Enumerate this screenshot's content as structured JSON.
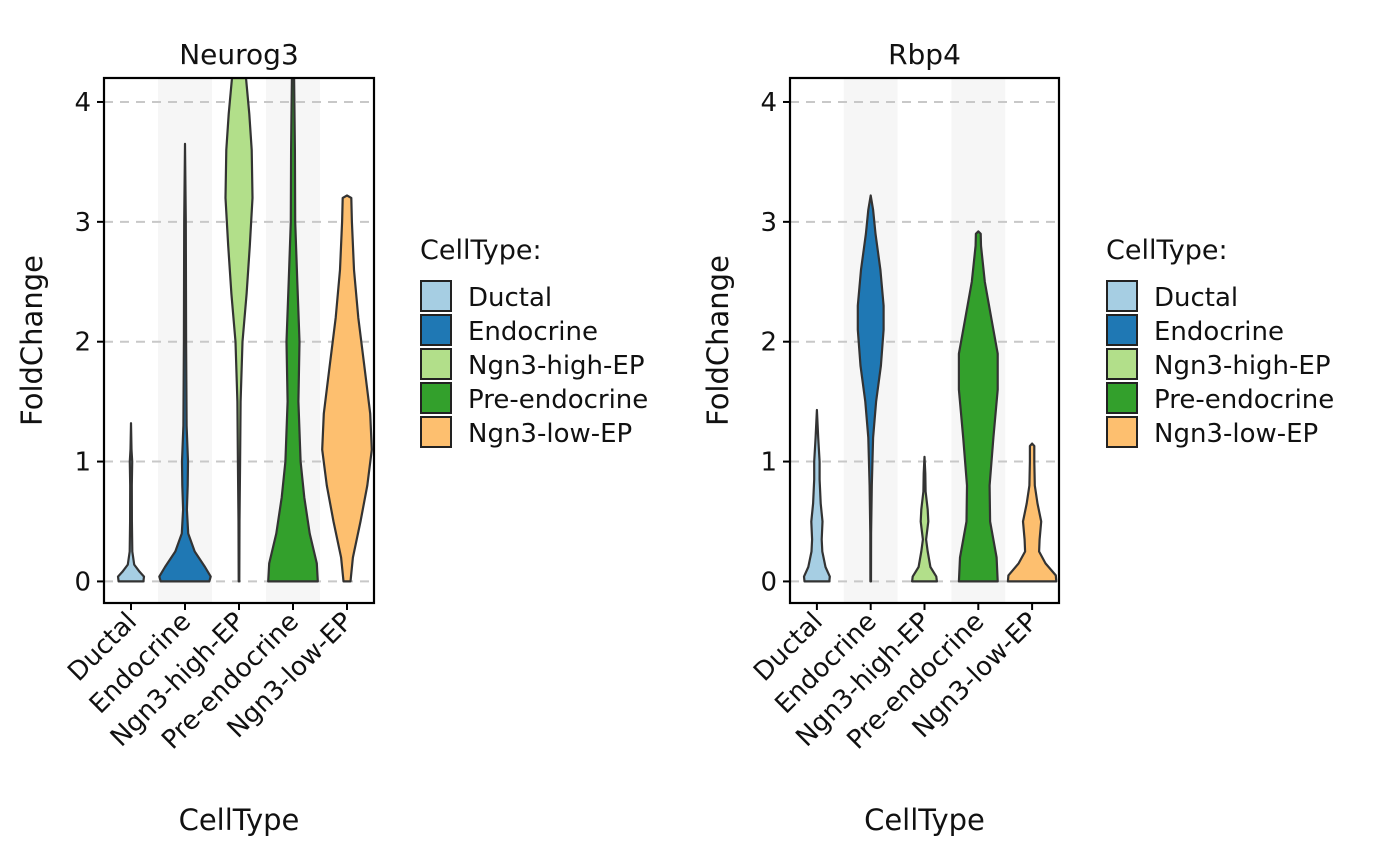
{
  "chart_data": [
    {
      "type": "violin",
      "title": "Neurog3",
      "xlabel": "CellType",
      "ylabel": "FoldChange",
      "ylim": [
        -0.18,
        4.2
      ],
      "yticks": [
        0,
        1,
        2,
        3,
        4
      ],
      "grid": "horizontal dashed",
      "categories": [
        "Ductal",
        "Endocrine",
        "Ngn3-high-EP",
        "Pre-endocrine",
        "Ngn3-low-EP"
      ],
      "legend": {
        "title": "CellType:",
        "position": "right",
        "entries": [
          "Ductal",
          "Endocrine",
          "Ngn3-high-EP",
          "Pre-endocrine",
          "Ngn3-low-EP"
        ]
      },
      "series": [
        {
          "category": "Ductal",
          "color": "#A6CEE3",
          "min": 0,
          "max": 1.32,
          "profile": [
            [
              0,
              0.46
            ],
            [
              0.04,
              0.48
            ],
            [
              0.08,
              0.32
            ],
            [
              0.14,
              0.12
            ],
            [
              0.25,
              0.05
            ],
            [
              0.5,
              0.035
            ],
            [
              0.8,
              0.03
            ],
            [
              1.0,
              0.045
            ],
            [
              1.1,
              0.02
            ],
            [
              1.32,
              0.0
            ]
          ]
        },
        {
          "category": "Endocrine",
          "color": "#1F78B4",
          "min": 0,
          "max": 3.65,
          "profile": [
            [
              0,
              0.9
            ],
            [
              0.04,
              0.95
            ],
            [
              0.12,
              0.74
            ],
            [
              0.25,
              0.36
            ],
            [
              0.4,
              0.12
            ],
            [
              0.6,
              0.07
            ],
            [
              0.8,
              0.1
            ],
            [
              1.0,
              0.11
            ],
            [
              1.3,
              0.06
            ],
            [
              2.0,
              0.04
            ],
            [
              3.0,
              0.03
            ],
            [
              3.65,
              0.0
            ]
          ]
        },
        {
          "category": "Ngn3-high-EP",
          "color": "#B2DF8A",
          "min": 0,
          "max": 4.2,
          "profile": [
            [
              0,
              0.012
            ],
            [
              0.5,
              0.02
            ],
            [
              1.0,
              0.04
            ],
            [
              1.5,
              0.06
            ],
            [
              2.0,
              0.13
            ],
            [
              2.4,
              0.28
            ],
            [
              2.8,
              0.4
            ],
            [
              3.2,
              0.5
            ],
            [
              3.6,
              0.47
            ],
            [
              3.9,
              0.38
            ],
            [
              4.2,
              0.26
            ]
          ]
        },
        {
          "category": "Pre-endocrine",
          "color": "#33A02C",
          "min": 0,
          "max": 4.2,
          "profile": [
            [
              0,
              0.92
            ],
            [
              0.15,
              0.88
            ],
            [
              0.4,
              0.62
            ],
            [
              0.7,
              0.42
            ],
            [
              1.0,
              0.28
            ],
            [
              1.5,
              0.2
            ],
            [
              2.0,
              0.24
            ],
            [
              2.5,
              0.16
            ],
            [
              3.0,
              0.08
            ],
            [
              3.6,
              0.07
            ],
            [
              4.2,
              0.04
            ]
          ]
        },
        {
          "category": "Ngn3-low-EP",
          "color": "#FDBF6F",
          "min": 0,
          "max": 3.22,
          "profile": [
            [
              0,
              0.13
            ],
            [
              0.2,
              0.22
            ],
            [
              0.5,
              0.5
            ],
            [
              0.8,
              0.75
            ],
            [
              1.1,
              0.92
            ],
            [
              1.4,
              0.86
            ],
            [
              1.8,
              0.64
            ],
            [
              2.2,
              0.42
            ],
            [
              2.6,
              0.26
            ],
            [
              3.0,
              0.18
            ],
            [
              3.2,
              0.16
            ],
            [
              3.22,
              0.0
            ]
          ]
        }
      ]
    },
    {
      "type": "violin",
      "title": "Rbp4",
      "xlabel": "CellType",
      "ylabel": "FoldChange",
      "ylim": [
        -0.18,
        4.2
      ],
      "yticks": [
        0,
        1,
        2,
        3,
        4
      ],
      "grid": "horizontal dashed",
      "categories": [
        "Ductal",
        "Endocrine",
        "Ngn3-high-EP",
        "Pre-endocrine",
        "Ngn3-low-EP"
      ],
      "legend": {
        "title": "CellType:",
        "position": "right",
        "entries": [
          "Ductal",
          "Endocrine",
          "Ngn3-high-EP",
          "Pre-endocrine",
          "Ngn3-low-EP"
        ]
      },
      "series": [
        {
          "category": "Ductal",
          "color": "#A6CEE3",
          "min": 0,
          "max": 1.43,
          "profile": [
            [
              0,
              0.46
            ],
            [
              0.04,
              0.48
            ],
            [
              0.12,
              0.32
            ],
            [
              0.25,
              0.2
            ],
            [
              0.35,
              0.18
            ],
            [
              0.5,
              0.21
            ],
            [
              0.65,
              0.14
            ],
            [
              0.85,
              0.1
            ],
            [
              1.0,
              0.1
            ],
            [
              1.2,
              0.05
            ],
            [
              1.43,
              0.0
            ]
          ]
        },
        {
          "category": "Endocrine",
          "color": "#1F78B4",
          "min": 0,
          "max": 3.22,
          "profile": [
            [
              0,
              0.01
            ],
            [
              0.4,
              0.015
            ],
            [
              0.8,
              0.04
            ],
            [
              1.2,
              0.09
            ],
            [
              1.5,
              0.2
            ],
            [
              1.8,
              0.38
            ],
            [
              2.1,
              0.48
            ],
            [
              2.3,
              0.48
            ],
            [
              2.6,
              0.36
            ],
            [
              2.9,
              0.18
            ],
            [
              3.1,
              0.09
            ],
            [
              3.22,
              0.0
            ]
          ]
        },
        {
          "category": "Ngn3-high-EP",
          "color": "#B2DF8A",
          "min": 0,
          "max": 1.04,
          "profile": [
            [
              0,
              0.46
            ],
            [
              0.04,
              0.44
            ],
            [
              0.12,
              0.22
            ],
            [
              0.25,
              0.12
            ],
            [
              0.35,
              0.06
            ],
            [
              0.5,
              0.14
            ],
            [
              0.6,
              0.12
            ],
            [
              0.75,
              0.04
            ],
            [
              0.9,
              0.03
            ],
            [
              1.04,
              0.0
            ]
          ]
        },
        {
          "category": "Pre-endocrine",
          "color": "#33A02C",
          "min": 0,
          "max": 2.92,
          "profile": [
            [
              0,
              0.72
            ],
            [
              0.2,
              0.68
            ],
            [
              0.5,
              0.44
            ],
            [
              0.8,
              0.42
            ],
            [
              1.2,
              0.56
            ],
            [
              1.6,
              0.72
            ],
            [
              1.9,
              0.72
            ],
            [
              2.2,
              0.48
            ],
            [
              2.5,
              0.24
            ],
            [
              2.8,
              0.1
            ],
            [
              2.9,
              0.09
            ],
            [
              2.92,
              0.0
            ]
          ]
        },
        {
          "category": "Ngn3-low-EP",
          "color": "#FDBF6F",
          "min": 0,
          "max": 1.15,
          "profile": [
            [
              0,
              0.9
            ],
            [
              0.05,
              0.88
            ],
            [
              0.15,
              0.5
            ],
            [
              0.25,
              0.26
            ],
            [
              0.35,
              0.28
            ],
            [
              0.5,
              0.34
            ],
            [
              0.65,
              0.2
            ],
            [
              0.8,
              0.1
            ],
            [
              1.0,
              0.08
            ],
            [
              1.13,
              0.08
            ],
            [
              1.15,
              0.0
            ]
          ]
        }
      ]
    }
  ]
}
